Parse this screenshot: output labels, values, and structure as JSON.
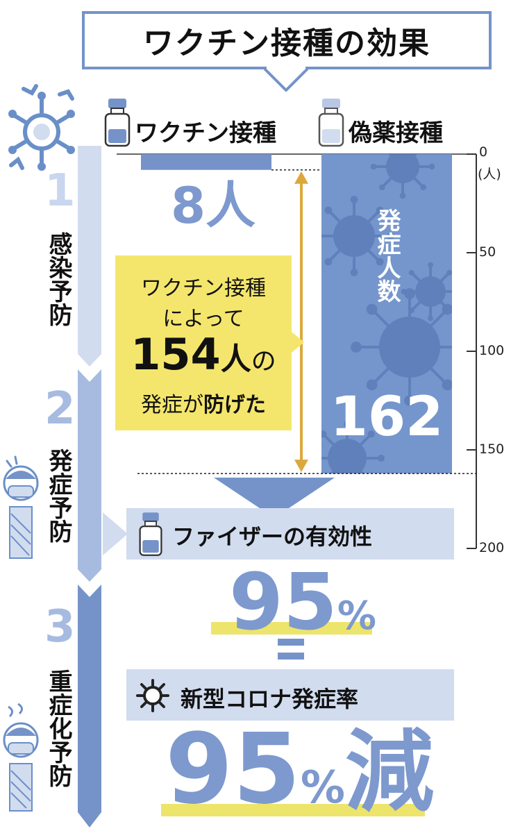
{
  "title": "ワクチン接種の効果",
  "stages": [
    {
      "number": "1",
      "label": "感染予防"
    },
    {
      "number": "2",
      "label": "発症予防"
    },
    {
      "number": "3",
      "label": "重症化予防"
    }
  ],
  "chart_data": {
    "type": "bar",
    "categories": [
      "ワクチン接種",
      "偽薬接種"
    ],
    "values": [
      8,
      162
    ],
    "value_labels": [
      "8人",
      "162"
    ],
    "bar_inner_label": "発症人数",
    "ylim": [
      0,
      200
    ],
    "yticks": [
      0,
      50,
      100,
      150,
      200
    ],
    "y_unit": "(人)",
    "orientation": "downward",
    "colors": {
      "vaccine": "#7593c9",
      "placebo": "#7596cc"
    }
  },
  "callout": {
    "line1": "ワクチン接種",
    "line2": "によって",
    "number": "154",
    "unit": "人",
    "particle": "の",
    "line4a": "発症が",
    "line4b": "防げた"
  },
  "efficacy": {
    "label": "ファイザーの有効性",
    "value": "95",
    "unit": "%",
    "equals": "=",
    "reduction_label": "新型コロナ発症率",
    "reduction_value": "95",
    "reduction_unit": "%",
    "reduction_suffix": "減"
  },
  "icons": {
    "virus": "virus-icon",
    "vial": "vaccine-vial-icon",
    "person": "masked-person-icon"
  },
  "colors": {
    "accent": "#7593c9",
    "light": "#d2dcef",
    "yellow": "#f4e66d",
    "arrow": "#dca83c"
  }
}
